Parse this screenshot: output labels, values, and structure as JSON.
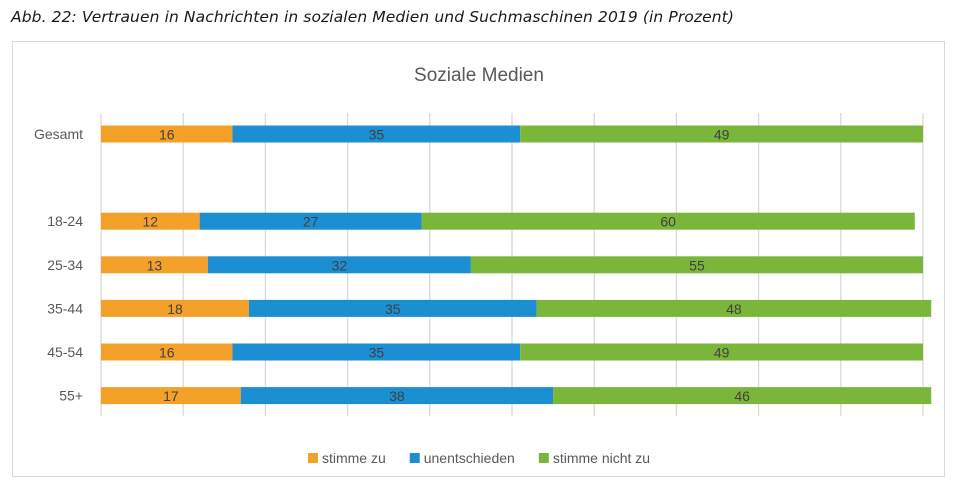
{
  "caption": "Abb. 22:  Vertrauen in Nachrichten in sozialen Medien und Suchmaschinen 2019 (in Prozent)",
  "chart_data": {
    "type": "bar",
    "orientation": "horizontal",
    "stacked": true,
    "title": "Soziale Medien",
    "xlabel": "",
    "ylabel": "",
    "xlim": [
      0,
      100
    ],
    "grid": true,
    "legend_position": "bottom",
    "categories": [
      "Gesamt",
      "",
      "18-24",
      "25-34",
      "35-44",
      "45-54",
      "55+"
    ],
    "series": [
      {
        "name": "stimme zu",
        "color": "#F4A12A",
        "values": [
          16,
          null,
          12,
          13,
          18,
          16,
          17
        ]
      },
      {
        "name": "unentschieden",
        "color": "#1B8FD2",
        "values": [
          35,
          null,
          27,
          32,
          35,
          35,
          38
        ]
      },
      {
        "name": "stimme nicht zu",
        "color": "#7AB63A",
        "values": [
          49,
          null,
          60,
          55,
          48,
          49,
          46
        ]
      }
    ]
  }
}
